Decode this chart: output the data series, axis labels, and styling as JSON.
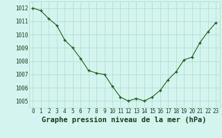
{
  "x": [
    0,
    1,
    2,
    3,
    4,
    5,
    6,
    7,
    8,
    9,
    10,
    11,
    12,
    13,
    14,
    15,
    16,
    17,
    18,
    19,
    20,
    21,
    22,
    23
  ],
  "y": [
    1012.0,
    1011.8,
    1011.2,
    1010.7,
    1009.6,
    1009.0,
    1008.2,
    1007.3,
    1007.1,
    1007.0,
    1006.1,
    1005.3,
    1005.0,
    1005.2,
    1005.0,
    1005.3,
    1005.8,
    1006.6,
    1007.2,
    1008.1,
    1008.3,
    1009.4,
    1010.2,
    1010.9
  ],
  "bg_color": "#d4f5ef",
  "line_color": "#1a5c1a",
  "marker_color": "#1a5c1a",
  "grid_color": "#b0d8cc",
  "title": "Graphe pression niveau de la mer (hPa)",
  "ylim": [
    1004.5,
    1012.5
  ],
  "yticks": [
    1005,
    1006,
    1007,
    1008,
    1009,
    1010,
    1011,
    1012
  ],
  "xticks": [
    0,
    1,
    2,
    3,
    4,
    5,
    6,
    7,
    8,
    9,
    10,
    11,
    12,
    13,
    14,
    15,
    16,
    17,
    18,
    19,
    20,
    21,
    22,
    23
  ],
  "title_fontsize": 7.5,
  "tick_fontsize": 5.5
}
